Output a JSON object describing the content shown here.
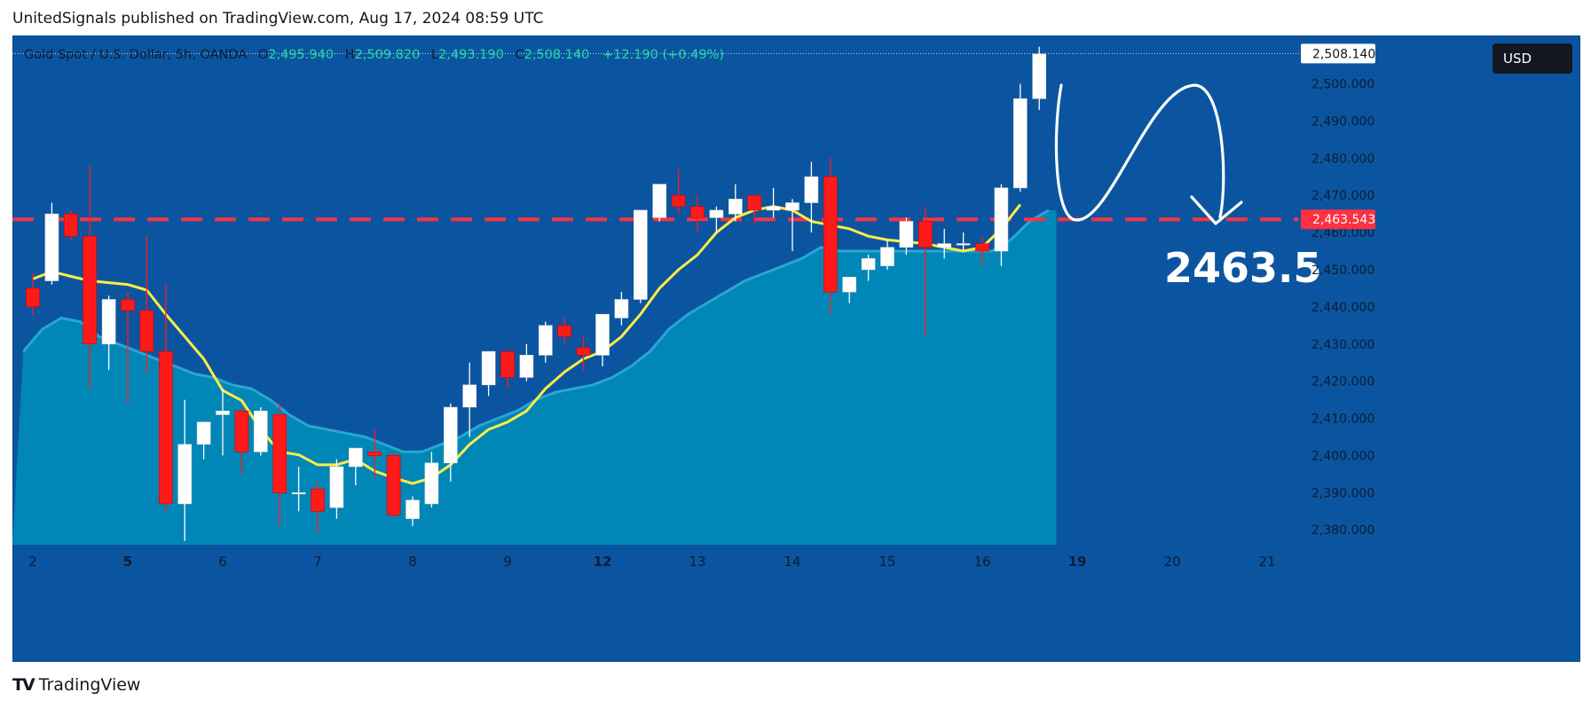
{
  "header": {
    "publisher_line": "UnitedSignals published on TradingView.com, Aug 17, 2024 08:59 UTC"
  },
  "legend": {
    "symbol": "Gold Spot / U.S. Dollar, 5h, OANDA",
    "o_label": "O",
    "o_value": "2,495.940",
    "h_label": "H",
    "h_value": "2,509.820",
    "l_label": "L",
    "l_value": "2,493.190",
    "c_label": "C",
    "c_value": "2,508.140",
    "change": "+12.190 (+0.49%)"
  },
  "currency_button": {
    "label": "USD"
  },
  "footer": {
    "logo_mark": "TV",
    "logo_text": "TradingView"
  },
  "colors": {
    "background": "#0b55a0",
    "bull_candle": "#ffffff",
    "bear_candle": "#ff1a1a",
    "ema_line": "#ffee44",
    "area_fill": "#0089b8",
    "level_line": "#ff3040",
    "last_price_tag": "#ffffff",
    "level_tag": "#ff3040"
  },
  "annotations": {
    "target_text": "2463.5",
    "last_price_tag": "2,508.140",
    "level_tag": "2,463.543"
  },
  "chart_data": {
    "type": "candlestick",
    "symbol": "XAUUSD",
    "timeframe": "5h",
    "ylim": [
      2376,
      2513
    ],
    "y_ticks": [
      2380,
      2390,
      2400,
      2410,
      2420,
      2430,
      2440,
      2450,
      2460,
      2470,
      2480,
      2490,
      2500
    ],
    "y_tick_labels": [
      "2,380.000",
      "2,390.000",
      "2,400.000",
      "2,410.000",
      "2,420.000",
      "2,430.000",
      "2,440.000",
      "2,450.000",
      "2,460.000",
      "2,470.000",
      "2,480.000",
      "2,490.000",
      "2,500.000"
    ],
    "x_tick_labels": [
      {
        "label": "2",
        "bold": false,
        "slot": 0.5
      },
      {
        "label": "5",
        "bold": true,
        "slot": 5.5
      },
      {
        "label": "6",
        "bold": false,
        "slot": 10.5
      },
      {
        "label": "7",
        "bold": false,
        "slot": 15.5
      },
      {
        "label": "8",
        "bold": false,
        "slot": 20.5
      },
      {
        "label": "9",
        "bold": false,
        "slot": 25.5
      },
      {
        "label": "12",
        "bold": true,
        "slot": 30.5
      },
      {
        "label": "13",
        "bold": false,
        "slot": 35.5
      },
      {
        "label": "14",
        "bold": false,
        "slot": 40.5
      },
      {
        "label": "15",
        "bold": false,
        "slot": 45.5
      },
      {
        "label": "16",
        "bold": false,
        "slot": 50.5
      },
      {
        "label": "19",
        "bold": true,
        "slot": 55.5
      },
      {
        "label": "20",
        "bold": false,
        "slot": 60.5
      },
      {
        "label": "21",
        "bold": false,
        "slot": 65.5
      }
    ],
    "horizontal_level": 2463.543,
    "last_price": 2508.14,
    "candles": [
      {
        "o": 2445,
        "h": 2449,
        "l": 2438,
        "c": 2440
      },
      {
        "o": 2447,
        "h": 2468,
        "l": 2446,
        "c": 2465
      },
      {
        "o": 2465,
        "h": 2466,
        "l": 2458,
        "c": 2459
      },
      {
        "o": 2459,
        "h": 2478,
        "l": 2418,
        "c": 2430
      },
      {
        "o": 2430,
        "h": 2443,
        "l": 2423,
        "c": 2442
      },
      {
        "o": 2442,
        "h": 2444,
        "l": 2414,
        "c": 2439
      },
      {
        "o": 2439,
        "h": 2459,
        "l": 2422,
        "c": 2428
      },
      {
        "o": 2428,
        "h": 2446,
        "l": 2385,
        "c": 2387
      },
      {
        "o": 2387,
        "h": 2415,
        "l": 2377,
        "c": 2403
      },
      {
        "o": 2403,
        "h": 2409,
        "l": 2399,
        "c": 2409
      },
      {
        "o": 2411,
        "h": 2418,
        "l": 2400,
        "c": 2412
      },
      {
        "o": 2412,
        "h": 2413,
        "l": 2395,
        "c": 2401
      },
      {
        "o": 2401,
        "h": 2413,
        "l": 2400,
        "c": 2412
      },
      {
        "o": 2411,
        "h": 2414,
        "l": 2381,
        "c": 2390
      },
      {
        "o": 2390,
        "h": 2397,
        "l": 2385,
        "c": 2390
      },
      {
        "o": 2391,
        "h": 2393,
        "l": 2379,
        "c": 2385
      },
      {
        "o": 2386,
        "h": 2399,
        "l": 2383,
        "c": 2397
      },
      {
        "o": 2397,
        "h": 2402,
        "l": 2392,
        "c": 2402
      },
      {
        "o": 2401,
        "h": 2407,
        "l": 2394,
        "c": 2400
      },
      {
        "o": 2400,
        "h": 2401,
        "l": 2383,
        "c": 2384
      },
      {
        "o": 2383,
        "h": 2389,
        "l": 2381,
        "c": 2388
      },
      {
        "o": 2387,
        "h": 2401,
        "l": 2386,
        "c": 2398
      },
      {
        "o": 2398,
        "h": 2414,
        "l": 2393,
        "c": 2413
      },
      {
        "o": 2413,
        "h": 2425,
        "l": 2405,
        "c": 2419
      },
      {
        "o": 2419,
        "h": 2428,
        "l": 2416,
        "c": 2428
      },
      {
        "o": 2428,
        "h": 2428,
        "l": 2418,
        "c": 2421
      },
      {
        "o": 2421,
        "h": 2430,
        "l": 2420,
        "c": 2427
      },
      {
        "o": 2427,
        "h": 2436,
        "l": 2425,
        "c": 2435
      },
      {
        "o": 2435,
        "h": 2437,
        "l": 2430,
        "c": 2432
      },
      {
        "o": 2429,
        "h": 2432,
        "l": 2423,
        "c": 2427
      },
      {
        "o": 2427,
        "h": 2438,
        "l": 2424,
        "c": 2438
      },
      {
        "o": 2437,
        "h": 2444,
        "l": 2435,
        "c": 2442
      },
      {
        "o": 2442,
        "h": 2466,
        "l": 2441,
        "c": 2466
      },
      {
        "o": 2464,
        "h": 2473,
        "l": 2463,
        "c": 2473
      },
      {
        "o": 2470,
        "h": 2477,
        "l": 2465,
        "c": 2467
      },
      {
        "o": 2467,
        "h": 2470,
        "l": 2460,
        "c": 2464
      },
      {
        "o": 2464,
        "h": 2467,
        "l": 2460,
        "c": 2466
      },
      {
        "o": 2465,
        "h": 2473,
        "l": 2463,
        "c": 2469
      },
      {
        "o": 2470,
        "h": 2470,
        "l": 2462,
        "c": 2466
      },
      {
        "o": 2466,
        "h": 2472,
        "l": 2464,
        "c": 2467
      },
      {
        "o": 2466,
        "h": 2469,
        "l": 2455,
        "c": 2468
      },
      {
        "o": 2468,
        "h": 2479,
        "l": 2460,
        "c": 2475
      },
      {
        "o": 2475,
        "h": 2480,
        "l": 2438,
        "c": 2444
      },
      {
        "o": 2444,
        "h": 2448,
        "l": 2441,
        "c": 2448
      },
      {
        "o": 2450,
        "h": 2454,
        "l": 2447,
        "c": 2453
      },
      {
        "o": 2451,
        "h": 2458,
        "l": 2450,
        "c": 2456
      },
      {
        "o": 2456,
        "h": 2464,
        "l": 2454,
        "c": 2463
      },
      {
        "o": 2463,
        "h": 2467,
        "l": 2432,
        "c": 2456
      },
      {
        "o": 2456,
        "h": 2461,
        "l": 2453,
        "c": 2457
      },
      {
        "o": 2457,
        "h": 2460,
        "l": 2455,
        "c": 2457
      },
      {
        "o": 2457,
        "h": 2459,
        "l": 2451,
        "c": 2455
      },
      {
        "o": 2455,
        "h": 2473,
        "l": 2451,
        "c": 2472
      },
      {
        "o": 2472,
        "h": 2500,
        "l": 2471,
        "c": 2496
      },
      {
        "o": 2496,
        "h": 2510,
        "l": 2493,
        "c": 2508
      }
    ],
    "ema": [
      2447.5,
      2449.5,
      2448.2,
      2447.0,
      2446.5,
      2446.0,
      2444.5,
      2438.0,
      2432.0,
      2426.0,
      2417.5,
      2414.8,
      2407.0,
      2401.0,
      2400.2,
      2397.5,
      2397.5,
      2399.0,
      2395.8,
      2394.0,
      2392.5,
      2394.0,
      2397.5,
      2403.0,
      2407.0,
      2409.0,
      2412.0,
      2418.0,
      2422.5,
      2426.0,
      2428.0,
      2432.0,
      2438.0,
      2445.0,
      2450.0,
      2454.0,
      2460.0,
      2464.0,
      2466.0,
      2467.0,
      2466.0,
      2463.0,
      2462.0,
      2461.0,
      2459.0,
      2458.0,
      2457.5,
      2457.0,
      2456.0,
      2455.0,
      2456.0,
      2461.0,
      2467.5
    ],
    "area": [
      2428,
      2434,
      2437,
      2436,
      2432,
      2430,
      2428,
      2426,
      2424,
      2422,
      2421,
      2419,
      2418,
      2415,
      2411,
      2408,
      2407,
      2406,
      2405,
      2403,
      2401,
      2401,
      2403,
      2405,
      2408,
      2410,
      2412,
      2415,
      2417,
      2418,
      2419,
      2421,
      2424,
      2428,
      2434,
      2438,
      2441,
      2444,
      2447,
      2449,
      2451,
      2453,
      2456,
      2455,
      2455,
      2455,
      2455,
      2455,
      2455,
      2455,
      2455,
      2455,
      2458,
      2463,
      2466
    ]
  }
}
